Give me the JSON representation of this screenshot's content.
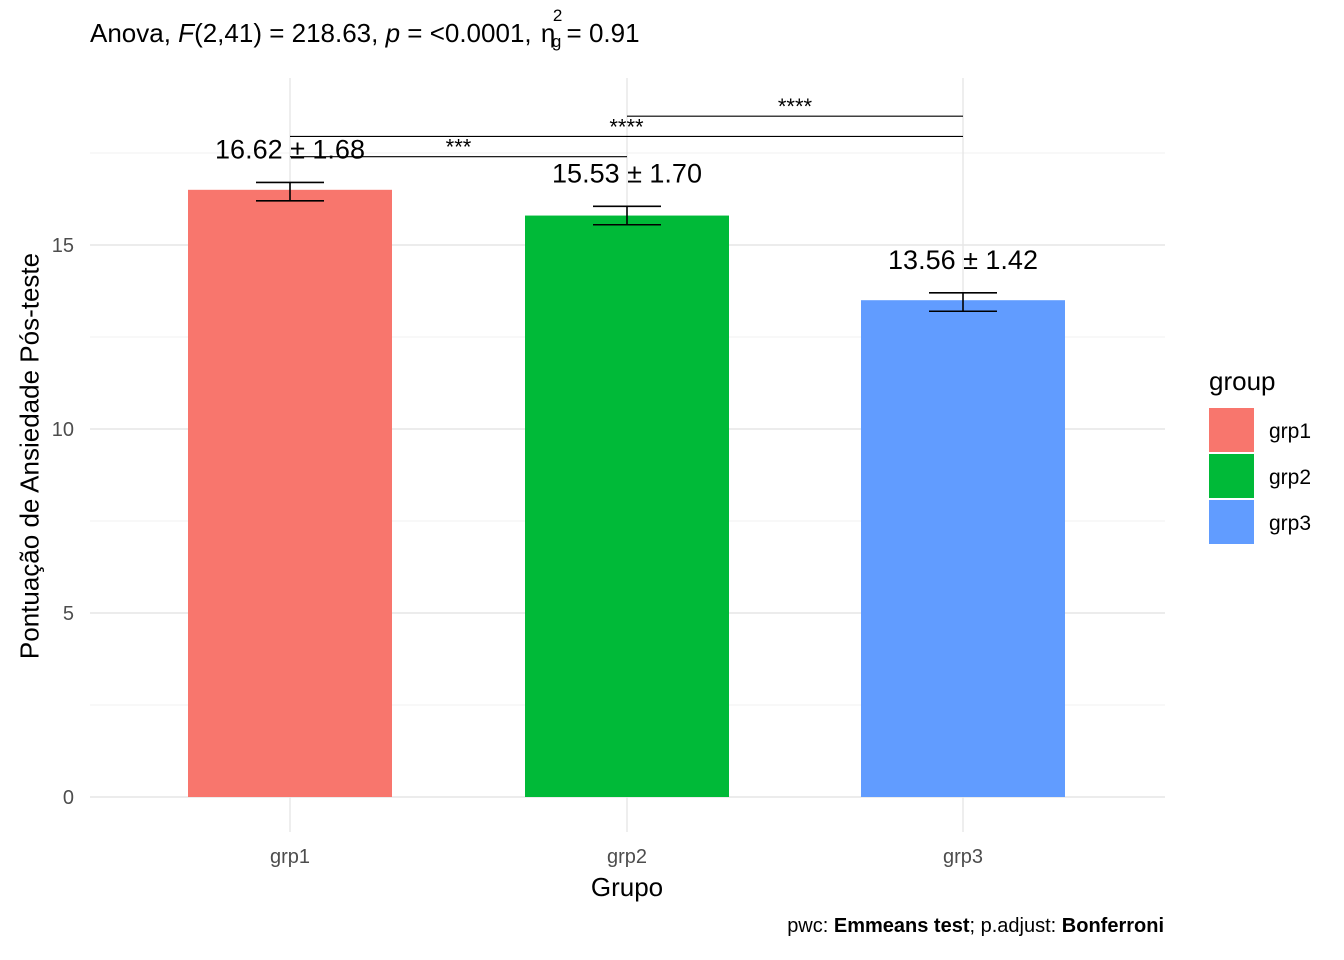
{
  "title": {
    "prefix": "Anova, ",
    "F": "F",
    "df": "(2,41) = 218.63, ",
    "p": "p",
    "p_value": " = <0.0001, ",
    "eta": "η",
    "eta_sup": "2",
    "eta_sub": "g",
    "eta_value": " = 0.91"
  },
  "caption": {
    "pwc_label": "pwc: ",
    "pwc_method": "Emmeans test",
    "sep": "; p.adjust: ",
    "adjust_method": "Bonferroni"
  },
  "legend": {
    "title": "group",
    "items": [
      {
        "label": "grp1",
        "color": "#F8766D"
      },
      {
        "label": "grp2",
        "color": "#00BA38"
      },
      {
        "label": "grp3",
        "color": "#619CFF"
      }
    ]
  },
  "chart_data": {
    "type": "bar",
    "categories": [
      "grp1",
      "grp2",
      "grp3"
    ],
    "values": [
      16.5,
      15.8,
      13.5
    ],
    "error_low": [
      16.2,
      15.55,
      13.2
    ],
    "error_high": [
      16.7,
      16.05,
      13.7
    ],
    "bar_labels": [
      "16.62 ± 1.68",
      "15.53 ± 1.70",
      "13.56 ± 1.42"
    ],
    "colors": [
      "#F8766D",
      "#00BA38",
      "#619CFF"
    ],
    "xlabel": "Grupo",
    "ylabel": "Pontuação de Ansiedade Pós-teste",
    "ylim": [
      0,
      18.5
    ],
    "yticks": [
      0,
      5,
      10,
      15
    ],
    "grid": true,
    "comparisons": [
      {
        "from": "grp1",
        "to": "grp2",
        "y": 17.4,
        "label": "***"
      },
      {
        "from": "grp1",
        "to": "grp3",
        "y": 17.95,
        "label": "****"
      },
      {
        "from": "grp2",
        "to": "grp3",
        "y": 18.5,
        "label": "****"
      }
    ]
  }
}
